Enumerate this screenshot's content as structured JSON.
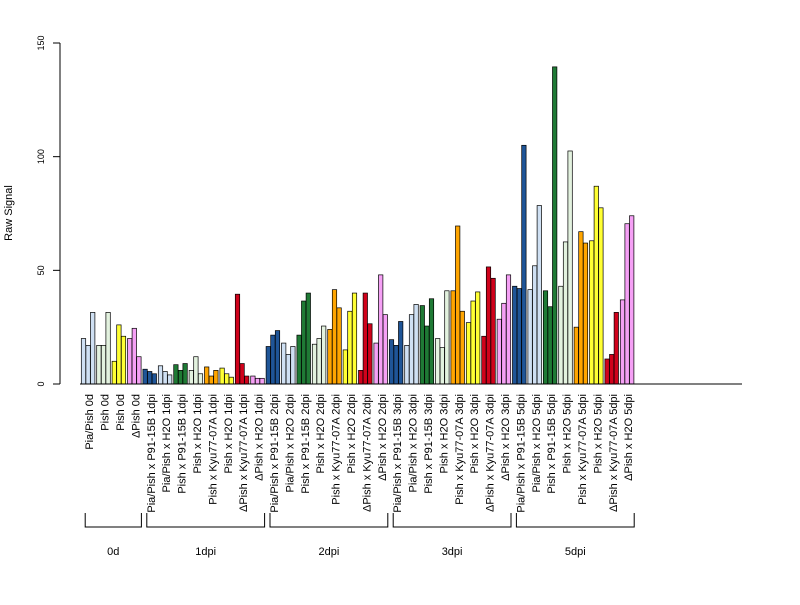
{
  "chart_data": {
    "type": "bar",
    "ylabel": "Raw Signal",
    "xlabel": "",
    "title": "",
    "ylim": [
      0,
      150
    ],
    "yticks": [
      0,
      50,
      100,
      150
    ],
    "grid": false,
    "bar_border_color": "#000000",
    "categories": [
      "Pia/Pish 0d",
      "Pish 0d",
      "Pish 0d",
      "ΔPish 0d",
      "Pia/Pish x P91-15B 1dpi",
      "Pia/Pish x H2O 1dpi",
      "Pish x P91-15B 1dpi",
      "Pish x H2O 1dpi",
      "Pish x Kyu77-07A 1dpi",
      "Pish x H2O 1dpi",
      "ΔPish x Kyu77-07A 1dpi",
      "ΔPish x H2O 1dpi",
      "Pia/Pish x P91-15B 2dpi",
      "Pia/Pish x H2O 2dpi",
      "Pish x P91-15B 2dpi",
      "Pish x H2O 2dpi",
      "Pish x Kyu77-07A 2dpi",
      "Pish x H2O 2dpi",
      "ΔPish x Kyu77-07A 2dpi",
      "ΔPish x H2O 2dpi",
      "Pia/Pish x P91-15B 3dpi",
      "Pia/Pish x H2O 3dpi",
      "Pish x P91-15B 3dpi",
      "Pish x H2O 3dpi",
      "Pish x Kyu77-07A 3dpi",
      "Pish x H2O 3dpi",
      "ΔPish x Kyu77-07A 3dpi",
      "ΔPish x H2O 3dpi",
      "Pia/Pish x P91-15B 5dpi",
      "Pia/Pish x H2O 5dpi",
      "Pish x P91-15B 5dpi",
      "Pish x H2O 5dpi",
      "Pish x Kyu77-07A 5dpi",
      "Pish x H2O 5dpi",
      "ΔPish x Kyu77-07A 5dpi",
      "ΔPish x H2O 5dpi"
    ],
    "colors": [
      "#cfe0f3",
      "#e3f2df",
      "#ffff33",
      "#f5a0f5",
      "#1f5597",
      "#cfe0f3",
      "#1f7a35",
      "#e3f2df",
      "#ffa500",
      "#ffff33",
      "#d0021b",
      "#f5a0f5",
      "#1f5597",
      "#cfe0f3",
      "#1f7a35",
      "#e3f2df",
      "#ffa500",
      "#ffff33",
      "#d0021b",
      "#f5a0f5",
      "#1f5597",
      "#cfe0f3",
      "#1f7a35",
      "#e3f2df",
      "#ffa500",
      "#ffff33",
      "#d0021b",
      "#f5a0f5",
      "#1f5597",
      "#cfe0f3",
      "#1f7a35",
      "#e3f2df",
      "#ffa500",
      "#ffff33",
      "#d0021b",
      "#f5a0f5"
    ],
    "values": [
      [
        20,
        17,
        31.5
      ],
      [
        17,
        17,
        31.5
      ],
      [
        10,
        26,
        21
      ],
      [
        20,
        24.5,
        12
      ],
      [
        6.5,
        5.5,
        4.5
      ],
      [
        8,
        5.5,
        4
      ],
      [
        8.5,
        6,
        9
      ],
      [
        6,
        12,
        4.5
      ],
      [
        7.5,
        3.5,
        6
      ],
      [
        7,
        4.5,
        3
      ],
      [
        39.5,
        9,
        3.5
      ],
      [
        3.5,
        2.5,
        2.5
      ],
      [
        16.5,
        21.5,
        23.5
      ],
      [
        18,
        13,
        16.5
      ],
      [
        21.5,
        36.5,
        40
      ],
      [
        17.5,
        20,
        25.5
      ],
      [
        24,
        41.5,
        33.5
      ],
      [
        15,
        32,
        40
      ],
      [
        6,
        40,
        26.5
      ],
      [
        18,
        48,
        30.5
      ],
      [
        19.5,
        17,
        27.5
      ],
      [
        17,
        30.5,
        35
      ],
      [
        34.5,
        25.5,
        37.5
      ],
      [
        20,
        16,
        41
      ],
      [
        41,
        69.5,
        32
      ],
      [
        27,
        36.5,
        40.5
      ],
      [
        21,
        51.5,
        46.5
      ],
      [
        28.5,
        35.5,
        48
      ],
      [
        43,
        42,
        105
      ],
      [
        41.5,
        52,
        78.5
      ],
      [
        41,
        34,
        139.5
      ],
      [
        43,
        62.5,
        102.5
      ],
      [
        25,
        67,
        62
      ],
      [
        63,
        87,
        77.5
      ],
      [
        11,
        13,
        31.5
      ],
      [
        37,
        70.5,
        74
      ]
    ],
    "groups": [
      {
        "label": "0d",
        "start": 0,
        "end": 3
      },
      {
        "label": "1dpi",
        "start": 4,
        "end": 11
      },
      {
        "label": "2dpi",
        "start": 12,
        "end": 19
      },
      {
        "label": "3dpi",
        "start": 20,
        "end": 27
      },
      {
        "label": "5dpi",
        "start": 28,
        "end": 35
      }
    ]
  }
}
